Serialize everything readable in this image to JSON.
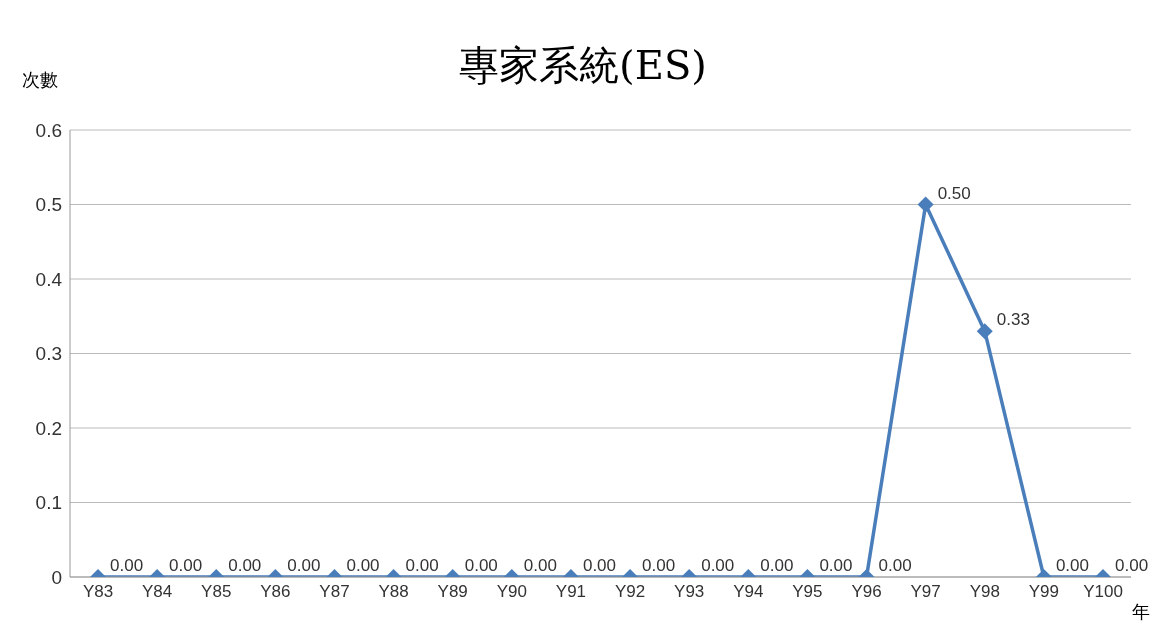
{
  "chart_data": {
    "type": "line",
    "title": "專家系統(ES)",
    "ylabel": "次數",
    "xlabel": "年",
    "categories": [
      "Y83",
      "Y84",
      "Y85",
      "Y86",
      "Y87",
      "Y88",
      "Y89",
      "Y90",
      "Y91",
      "Y92",
      "Y93",
      "Y94",
      "Y95",
      "Y96",
      "Y97",
      "Y98",
      "Y99",
      "Y100"
    ],
    "values": [
      0,
      0,
      0,
      0,
      0,
      0,
      0,
      0,
      0,
      0,
      0,
      0,
      0,
      0,
      0.5,
      0.33,
      0,
      0
    ],
    "value_labels": [
      "0.00",
      "0.00",
      "0.00",
      "0.00",
      "0.00",
      "0.00",
      "0.00",
      "0.00",
      "0.00",
      "0.00",
      "0.00",
      "0.00",
      "0.00",
      "0.00",
      "0.50",
      "0.33",
      "0.00",
      "0.00"
    ],
    "color": "#4a7ebb",
    "marker": "diamond",
    "line_style": "solid",
    "ylim": [
      0,
      0.6
    ],
    "yticks": [
      0,
      0.1,
      0.2,
      0.3,
      0.4,
      0.5,
      0.6
    ],
    "grid": "y",
    "legend": false
  }
}
